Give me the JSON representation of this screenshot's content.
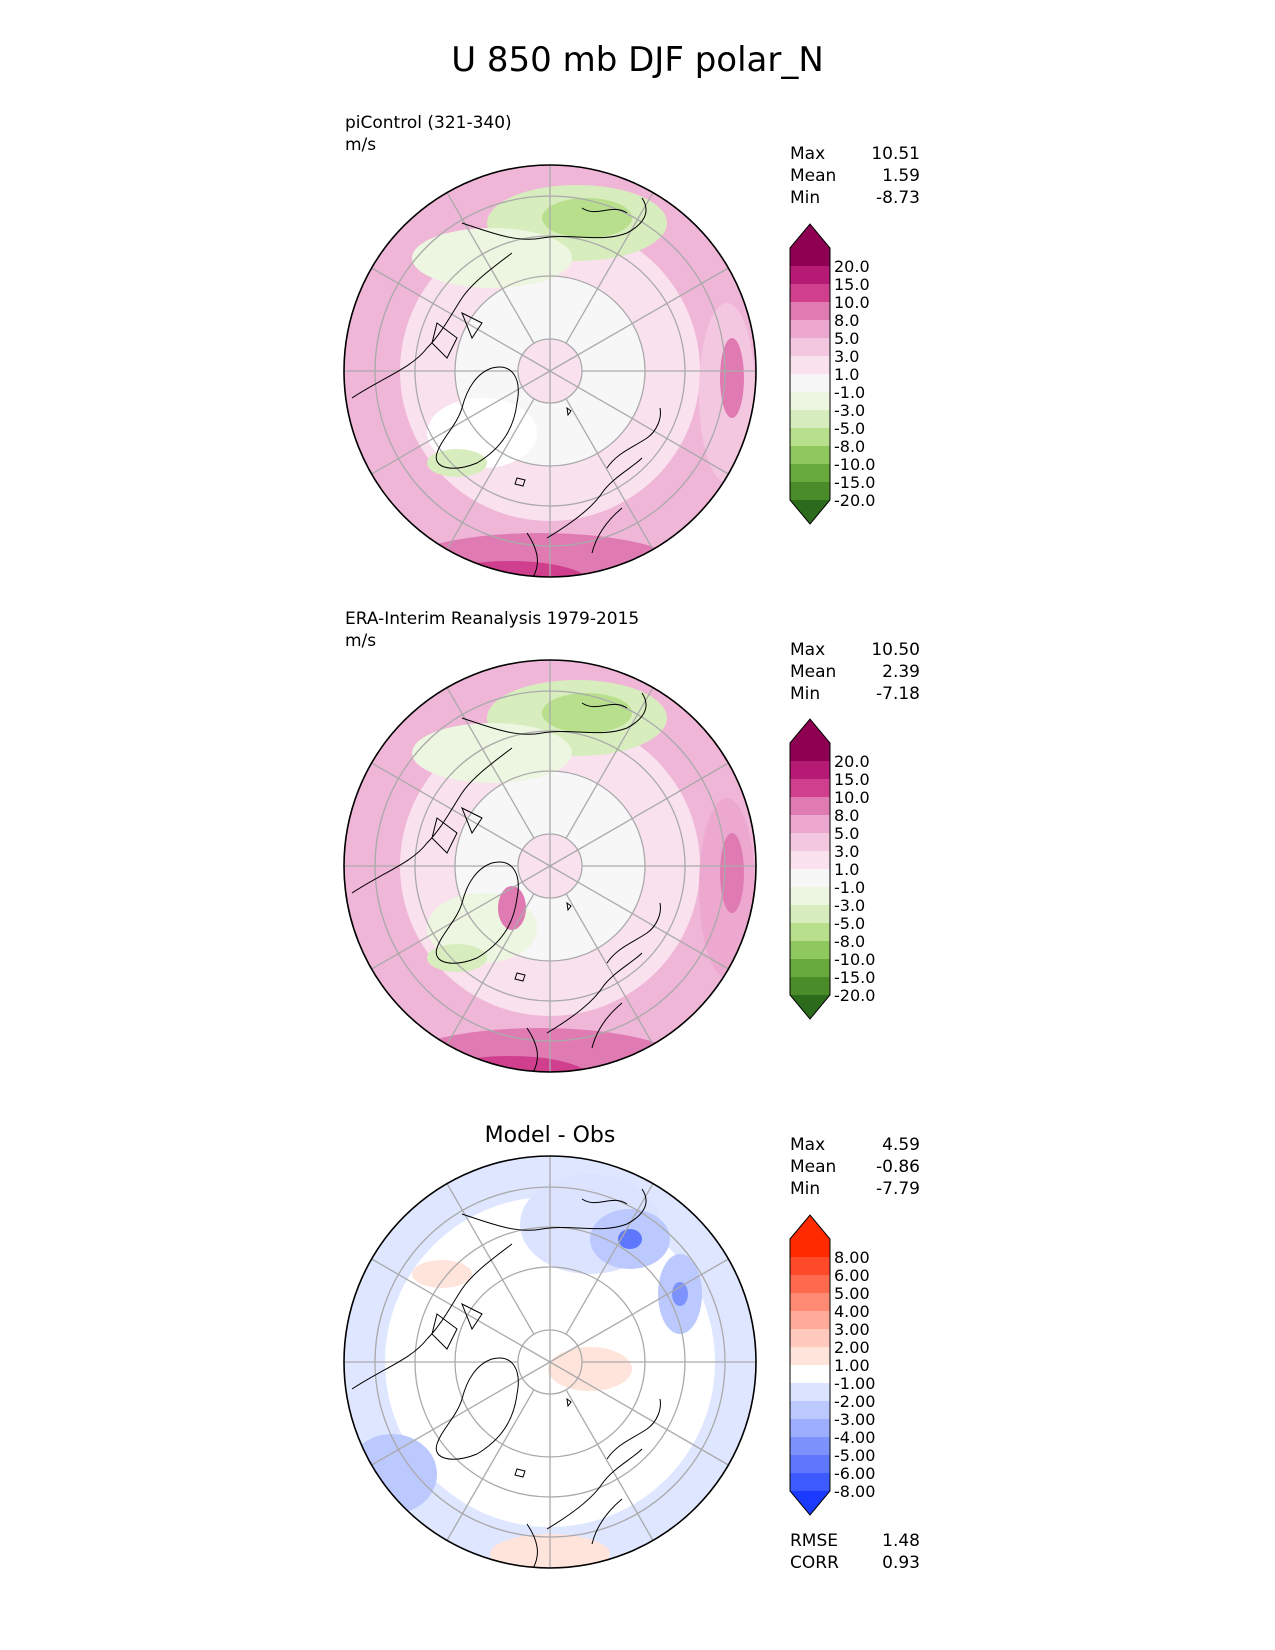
{
  "title": "U 850 mb DJF polar_N",
  "panels": [
    {
      "id": "model",
      "title": "piControl (321-340)",
      "units": "m/s",
      "stats": [
        {
          "label": "Max",
          "value": "10.51"
        },
        {
          "label": "Mean",
          "value": "1.59"
        },
        {
          "label": "Min",
          "value": "-8.73"
        }
      ]
    },
    {
      "id": "obs",
      "title": "ERA-Interim Reanalysis 1979-2015",
      "units": "m/s",
      "stats": [
        {
          "label": "Max",
          "value": "10.50"
        },
        {
          "label": "Mean",
          "value": "2.39"
        },
        {
          "label": "Min",
          "value": "-7.18"
        }
      ]
    },
    {
      "id": "diff",
      "title": "Model - Obs",
      "stats": [
        {
          "label": "Max",
          "value": "4.59"
        },
        {
          "label": "Mean",
          "value": "-0.86"
        },
        {
          "label": "Min",
          "value": "-7.79"
        }
      ],
      "metrics": [
        {
          "label": "RMSE",
          "value": "1.48"
        },
        {
          "label": "CORR",
          "value": "0.93"
        }
      ]
    }
  ],
  "chart_data": {
    "type": "heatmap",
    "projection": "north-polar-stereographic",
    "season": "DJF",
    "level": "850 mb",
    "colorbars": [
      {
        "panel": "model",
        "levels": [
          "20.0",
          "15.0",
          "10.0",
          "8.0",
          "5.0",
          "3.0",
          "1.0",
          "-1.0",
          "-3.0",
          "-5.0",
          "-8.0",
          "-10.0",
          "-15.0",
          "-20.0"
        ],
        "colors": [
          "#8e0152",
          "#b51a74",
          "#cf3f8d",
          "#e07ab3",
          "#eca8cf",
          "#f4c7e1",
          "#f9e1ee",
          "#f7f7f7",
          "#edf6e0",
          "#d8edbe",
          "#b8e08c",
          "#8fc85f",
          "#67a93d",
          "#4a8b2a",
          "#2d6b1c"
        ]
      },
      {
        "panel": "obs",
        "levels": [
          "20.0",
          "15.0",
          "10.0",
          "8.0",
          "5.0",
          "3.0",
          "1.0",
          "-1.0",
          "-3.0",
          "-5.0",
          "-8.0",
          "-10.0",
          "-15.0",
          "-20.0"
        ],
        "colors": [
          "#8e0152",
          "#b51a74",
          "#cf3f8d",
          "#e07ab3",
          "#eca8cf",
          "#f4c7e1",
          "#f9e1ee",
          "#f7f7f7",
          "#edf6e0",
          "#d8edbe",
          "#b8e08c",
          "#8fc85f",
          "#67a93d",
          "#4a8b2a",
          "#2d6b1c"
        ]
      },
      {
        "panel": "diff",
        "levels": [
          "8.00",
          "6.00",
          "5.00",
          "4.00",
          "3.00",
          "2.00",
          "1.00",
          "-1.00",
          "-2.00",
          "-3.00",
          "-4.00",
          "-5.00",
          "-6.00",
          "-8.00"
        ],
        "colors": [
          "#ff2a00",
          "#ff4a2a",
          "#ff6a4e",
          "#ff8a74",
          "#ffab9a",
          "#ffc9bd",
          "#ffe4dc",
          "#ffffff",
          "#dce3ff",
          "#bcc9ff",
          "#9daefe",
          "#7d92fd",
          "#5e77fd",
          "#3d5afe",
          "#1a3afe"
        ]
      }
    ]
  }
}
